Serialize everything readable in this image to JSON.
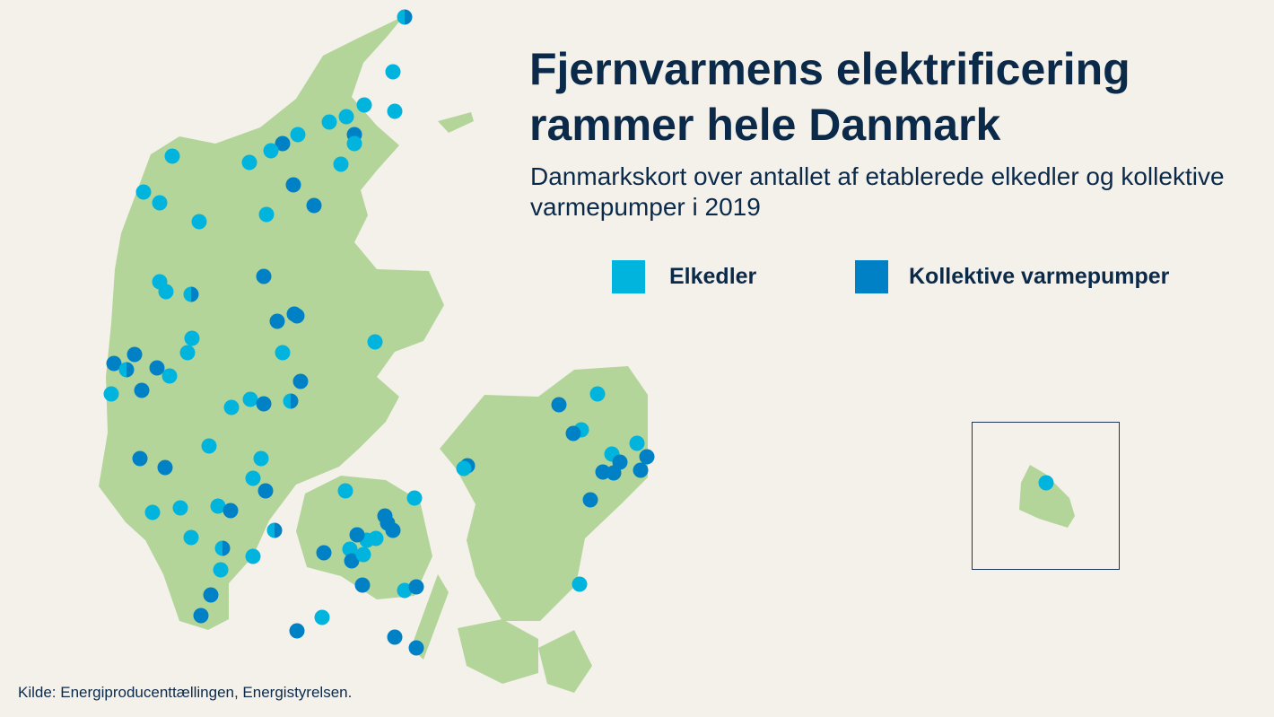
{
  "title": "Fjernvarmens elektrificering rammer hele Danmark",
  "subtitle": "Danmarkskort over antallet af etablerede elkedler og kollektive varmepumper i 2019",
  "legend": [
    {
      "label": "Elkedler",
      "color": "#00b4de"
    },
    {
      "label": "Kollektive varmepumper",
      "color": "#0081c6"
    }
  ],
  "source": "Kilde: Energiproducenttællingen, Energistyrelsen.",
  "colors": {
    "background": "#f4f1eb",
    "land": "#b4d59a",
    "elkedler": "#00b4de",
    "varmepumper": "#0081c6",
    "text": "#0b2a4a"
  },
  "marker_types": "e = Elkedler, k = Kollektive varmepumper, h = begge"
}
